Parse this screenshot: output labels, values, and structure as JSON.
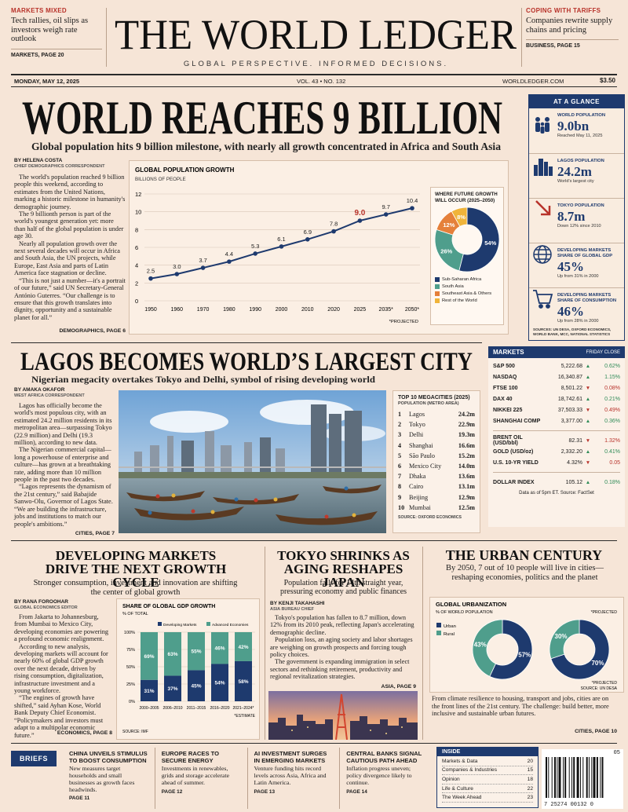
{
  "masthead": {
    "left_teaser": {
      "kicker": "MARKETS MIXED",
      "text": "Tech rallies, oil slips as investors weigh rate outlook",
      "ref": "MARKETS, PAGE 20"
    },
    "title": "THE WORLD LEDGER",
    "tagline": "GLOBAL PERSPECTIVE. INFORMED DECISIONS.",
    "right_teaser": {
      "kicker": "COPING WITH TARIFFS",
      "text": "Companies rewrite supply chains and pricing",
      "ref": "BUSINESS, PAGE 15"
    }
  },
  "dateline": {
    "date": "MONDAY, MAY 12, 2025",
    "issue": "VOL. 43 • NO. 132",
    "site": "WORLDLEDGER.COM",
    "price": "$3.50"
  },
  "lead": {
    "headline": "WORLD REACHES 9 BILLION",
    "subhead": "Global population hits 9 billion milestone, with nearly all growth concentrated in Africa and South Asia",
    "byline": "BY HELENA COSTA",
    "role": "CHIEF DEMOGRAPHICS CORRESPONDENT",
    "paragraphs": [
      "The world's population reached 9 billion people this weekend, according to estimates from the United Nations, marking a historic milestone in humanity's demographic journey.",
      "The 9 billionth person is part of the world's youngest generation yet: more than half of the global population is under age 30.",
      "Nearly all population growth over the next several decades will occur in Africa and South Asia, the UN projects, while Europe, East Asia and parts of Latin America face stagnation or decline.",
      "“This is not just a number—it's a portrait of our future,” said UN Secretary-General António Guterres. “Our challenge is to ensure that this growth translates into dignity, opportunity and a sustainable planet for all.”"
    ],
    "ref": "DEMOGRAPHICS, PAGE 6"
  },
  "chart_data": [
    {
      "type": "line",
      "title": "GLOBAL POPULATION GROWTH",
      "y_label": "BILLIONS OF PEOPLE",
      "categories": [
        "1950",
        "1960",
        "1970",
        "1980",
        "1990",
        "2000",
        "2010",
        "2020",
        "2025",
        "2035*",
        "2050*"
      ],
      "values": [
        2.5,
        3.0,
        3.7,
        4.4,
        5.3,
        6.1,
        6.9,
        7.8,
        9.0,
        9.7,
        10.4
      ],
      "value_labels": [
        "2.5",
        "3.0",
        "3.7",
        "4.4",
        "5.3",
        "6.1",
        "6.9",
        "7.8",
        "9.0",
        "9.7",
        "10.4"
      ],
      "ylim": [
        0,
        12
      ],
      "yticks": [
        0,
        2,
        4,
        6,
        8,
        10,
        12
      ],
      "grid": true,
      "color": "#1e3a6e",
      "highlight_category": "2025",
      "highlight_color": "#b8322a",
      "note": "*PROJECTED"
    },
    {
      "type": "pie",
      "title": "WHERE FUTURE GROWTH WILL OCCUR (2025–2050)",
      "categories": [
        "Sub-Saharan Africa",
        "South Asia",
        "Southeast Asia & Others",
        "Rest of the World"
      ],
      "values": [
        54,
        26,
        12,
        8
      ],
      "value_labels": [
        "54%",
        "26%",
        "12%",
        "8%"
      ],
      "colors": [
        "#1e3a6e",
        "#4f9e8c",
        "#e5803a",
        "#f0b43a"
      ]
    },
    {
      "type": "stacked_bar",
      "title": "SHARE OF GLOBAL GDP GROWTH",
      "y_label": "% OF TOTAL",
      "categories": [
        "2000–2005",
        "2006–2010",
        "2011–2015",
        "2016–2020",
        "2021–2024*"
      ],
      "series": [
        {
          "name": "Developing Markets",
          "color": "#1e3a6e",
          "values": [
            31,
            37,
            45,
            54,
            58
          ],
          "value_labels": [
            "31%",
            "37%",
            "45%",
            "54%",
            "58%"
          ]
        },
        {
          "name": "Advanced Economies",
          "color": "#4f9e8c",
          "values": [
            69,
            63,
            55,
            46,
            42
          ],
          "value_labels": [
            "69%",
            "63%",
            "55%",
            "46%",
            "42%"
          ]
        }
      ],
      "ylim": [
        0,
        100
      ],
      "yticks": [
        {
          "value": 0,
          "label": "0%"
        },
        {
          "value": 25,
          "label": "25%"
        },
        {
          "value": 50,
          "label": "50%"
        },
        {
          "value": 75,
          "label": "75%"
        },
        {
          "value": 100,
          "label": "100%"
        }
      ],
      "note": "*ESTIMATE",
      "source": "SOURCE: IMF"
    },
    {
      "type": "pie",
      "title": "GLOBAL URBANIZATION",
      "y_label": "% OF WORLD POPULATION",
      "series": [
        {
          "name": "Urban",
          "color": "#1e3a6e",
          "values": [
            57,
            70
          ],
          "value_labels": [
            "57%",
            "70%"
          ]
        },
        {
          "name": "Rural",
          "color": "#4f9e8c",
          "values": [
            43,
            30
          ],
          "value_labels": [
            "43%",
            "30%"
          ]
        }
      ],
      "note_top": "*PROJECTED",
      "note": "*PROJECTED",
      "source": "SOURCE: UN DESA"
    }
  ],
  "at_a_glance": {
    "title": "AT A GLANCE",
    "items": [
      {
        "label": "WORLD POPULATION",
        "value": "9.0bn",
        "note": "Reached May 11, 2025"
      },
      {
        "label": "LAGOS POPULATION",
        "value": "24.2m",
        "note": "World's largest city"
      },
      {
        "label": "TOKYO POPULATION",
        "value": "8.7m",
        "note": "Down 12% since 2010"
      },
      {
        "label": "DEVELOPING MARKETS SHARE OF GLOBAL GDP",
        "value": "45%",
        "note": "Up from 31% in 2000"
      },
      {
        "label": "DEVELOPING MARKETS SHARE OF CONSUMPTION",
        "value": "46%",
        "note": "Up from 28% in 2000"
      }
    ],
    "sources": "SOURCES: UN DESA, OXFORD ECONOMICS, WORLD BANK, MCC, NATIONAL STATISTICS"
  },
  "lagos": {
    "headline": "LAGOS BECOMES WORLD’S LARGEST CITY",
    "subhead": "Nigerian megacity overtakes Tokyo and Delhi, symbol of rising developing world",
    "byline": "BY AMAKA OKAFOR",
    "role": "WEST AFRICA CORRESPONDENT",
    "paragraphs": [
      "Lagos has officially become the world's most populous city, with an estimated 24.2 million residents in its metropolitan area—surpassing Tokyo (22.9 million) and Delhi (19.3 million), according to new data.",
      "The Nigerian commercial capital—long a powerhouse of enterprise and culture—has grown at a breathtaking rate, adding more than 10 million people in the past two decades.",
      "“Lagos represents the dynamism of the 21st century,” said Babajide Sanwo-Olu, Governor of Lagos State. “We are building the infrastructure, jobs and institutions to match our people's ambitions.”"
    ],
    "ref": "CITIES, PAGE 7"
  },
  "megacities": {
    "title": "TOP 10 MEGACITIES (2025)",
    "subtitle": "POPULATION (METRO AREA)",
    "rows": [
      [
        "1",
        "Lagos",
        "24.2m"
      ],
      [
        "2",
        "Tokyo",
        "22.9m"
      ],
      [
        "3",
        "Delhi",
        "19.3m"
      ],
      [
        "4",
        "Shanghai",
        "16.6m"
      ],
      [
        "5",
        "São Paulo",
        "15.2m"
      ],
      [
        "6",
        "Mexico City",
        "14.0m"
      ],
      [
        "7",
        "Dhaka",
        "13.6m"
      ],
      [
        "8",
        "Cairo",
        "13.1m"
      ],
      [
        "9",
        "Beijing",
        "12.9m"
      ],
      [
        "10",
        "Mumbai",
        "12.5m"
      ]
    ],
    "source": "SOURCE: OXFORD ECONOMICS"
  },
  "markets": {
    "title": "MARKETS",
    "subtitle": "FRIDAY CLOSE",
    "groups": [
      [
        {
          "name": "S&P 500",
          "value": "5,222.68",
          "arrow": "▲",
          "change": "0.62%",
          "color": "#2e8b57"
        },
        {
          "name": "NASDAQ",
          "value": "16,340.87",
          "arrow": "▲",
          "change": "1.15%",
          "color": "#2e8b57"
        },
        {
          "name": "FTSE 100",
          "value": "8,501.22",
          "arrow": "▼",
          "change": "0.08%",
          "color": "#b8322a"
        },
        {
          "name": "DAX 40",
          "value": "18,742.61",
          "arrow": "▲",
          "change": "0.21%",
          "color": "#2e8b57"
        },
        {
          "name": "NIKKEI 225",
          "value": "37,503.33",
          "arrow": "▼",
          "change": "0.49%",
          "color": "#b8322a"
        },
        {
          "name": "SHANGHAI COMP",
          "value": "3,377.00",
          "arrow": "▲",
          "change": "0.36%",
          "color": "#2e8b57"
        }
      ],
      [
        {
          "name": "BRENT OIL (USD/bbl)",
          "value": "82.31",
          "arrow": "▼",
          "change": "1.32%",
          "color": "#b8322a"
        },
        {
          "name": "GOLD (USD/oz)",
          "value": "2,332.20",
          "arrow": "▲",
          "change": "0.41%",
          "color": "#2e8b57"
        },
        {
          "name": "U.S. 10-YR YIELD",
          "value": "4.32%",
          "arrow": "▼",
          "change": "0.05",
          "color": "#b8322a"
        }
      ],
      [
        {
          "name": "DOLLAR INDEX",
          "value": "105.12",
          "arrow": "▲",
          "change": "0.18%",
          "color": "#2e8b57"
        }
      ]
    ],
    "note": "Data as of 5pm ET. Source: FactSet"
  },
  "developing": {
    "headline": "DEVELOPING MARKETS DRIVE THE NEXT GROWTH CYCLE",
    "subhead": "Stronger consumption, investment and innovation are shifting the center of global growth",
    "byline": "BY RANA FOROOHAR",
    "role": "GLOBAL ECONOMICS EDITOR",
    "paragraphs": [
      "From Jakarta to Johannesburg, from Mumbai to Mexico City, developing economies are powering a profound economic realignment.",
      "According to new analysis, developing markets will account for nearly 60% of global GDP growth over the next decade, driven by rising consumption, digitalization, infrastructure investment and a young workforce.",
      "“The engines of growth have shifted,” said Ayhan Kose, World Bank Deputy Chief Economist. “Policymakers and investors must adapt to a multipolar economic future.”"
    ],
    "ref": "ECONOMICS, PAGE 8"
  },
  "tokyo": {
    "headline": "TOKYO SHRINKS AS AGING RESHAPES JAPAN",
    "subhead": "Population falls for 14th straight year, pressuring economy and public finances",
    "byline": "BY KENJI TAKAHASHI",
    "role": "ASIA BUREAU CHIEF",
    "paragraphs": [
      "Tokyo's population has fallen to 8.7 million, down 12% from its 2010 peak, reflecting Japan's accelerating demographic decline.",
      "Population loss, an aging society and labor shortages are weighing on growth prospects and forcing tough policy choices.",
      "The government is expanding immigration in select sectors and rethinking retirement, productivity and regional revitalization strategies."
    ],
    "ref": "ASIA, PAGE 9"
  },
  "urban": {
    "headline": "THE URBAN CENTURY",
    "subhead": "By 2050, 7 out of 10 people will live in cities—reshaping economies, politics and the planet",
    "text": "From climate resilience to housing, transport and jobs, cities are on the front lines of the 21st century. The challenge: build better, more inclusive and sustainable urban futures.",
    "ref": "CITIES, PAGE 10"
  },
  "briefs": {
    "label": "BRIEFS",
    "items": [
      {
        "headline": "CHINA UNVEILS STIMULUS TO BOOST CONSUMPTION",
        "text": "New measures target households and small businesses as growth faces headwinds.",
        "ref": "PAGE 11"
      },
      {
        "headline": "EUROPE RACES TO SECURE ENERGY",
        "text": "Investments in renewables, grids and storage accelerate ahead of summer.",
        "ref": "PAGE 12"
      },
      {
        "headline": "AI INVESTMENT SURGES IN EMERGING MARKETS",
        "text": "Venture funding hits record levels across Asia, Africa and Latin America.",
        "ref": "PAGE 13"
      },
      {
        "headline": "CENTRAL BANKS SIGNAL CAUTIOUS PATH AHEAD",
        "text": "Inflation progress uneven; policy divergence likely to continue.",
        "ref": "PAGE 14"
      }
    ]
  },
  "inside": {
    "title": "INSIDE",
    "rows": [
      [
        "Markets & Data",
        "20"
      ],
      [
        "Companies & Industries",
        "15"
      ],
      [
        "Opinion",
        "18"
      ],
      [
        "Life & Culture",
        "22"
      ],
      [
        "The Week Ahead",
        "23"
      ]
    ]
  },
  "barcode": {
    "number": "7 25274 00132 0",
    "addon": "05"
  }
}
